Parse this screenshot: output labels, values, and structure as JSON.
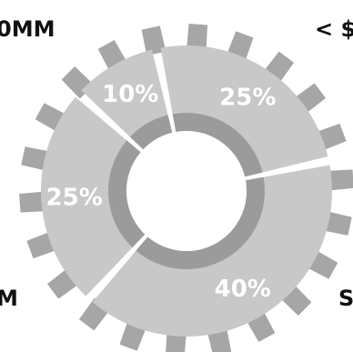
{
  "chart_data": {
    "type": "pie",
    "variant": "gear-donut",
    "slices": [
      {
        "label": "25%",
        "value": 25
      },
      {
        "label": "40%",
        "value": 40
      },
      {
        "label": "25%",
        "value": 25
      },
      {
        "label": "10%",
        "value": 10
      }
    ],
    "edge_labels": {
      "top_left": "0MM",
      "top_right": "< $",
      "bottom_left": "M",
      "bottom_right": "S"
    },
    "colors": {
      "slice_fill": "#c8c8c8",
      "inner_ring": "#9b9b9b",
      "teeth": "#a6a6a6",
      "label_text": "#ffffff",
      "edge_text": "#111111"
    }
  }
}
